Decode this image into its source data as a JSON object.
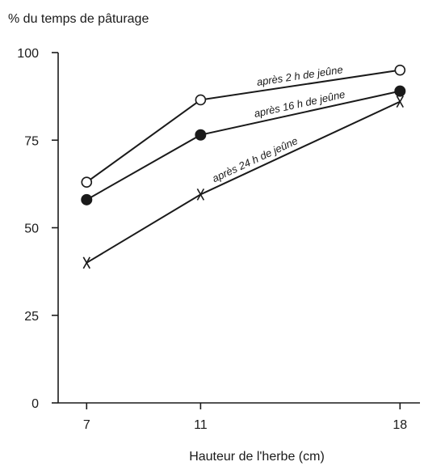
{
  "chart_data": {
    "type": "line",
    "ylabel": "% du temps de pâturage",
    "xlabel": "Hauteur  de l'herbe (cm)",
    "x": [
      7,
      11,
      18
    ],
    "x_tick_labels": [
      "7",
      "11",
      "18"
    ],
    "xlim": [
      6,
      18.7
    ],
    "ylim": [
      0,
      100
    ],
    "y_ticks": [
      0,
      25,
      50,
      75,
      100
    ],
    "y_tick_labels": [
      "0",
      "25",
      "50",
      "75",
      "100"
    ],
    "grid": false,
    "legend": "none",
    "series": [
      {
        "name": "après 2 h de jeûne",
        "marker": "open-circle",
        "values": [
          63,
          86.5,
          95
        ]
      },
      {
        "name": "après 16 h de jeûne",
        "marker": "filled-circle",
        "values": [
          58,
          76.5,
          89
        ]
      },
      {
        "name": "après 24 h de jeûne",
        "marker": "cross",
        "values": [
          40,
          59.5,
          86
        ]
      }
    ]
  }
}
